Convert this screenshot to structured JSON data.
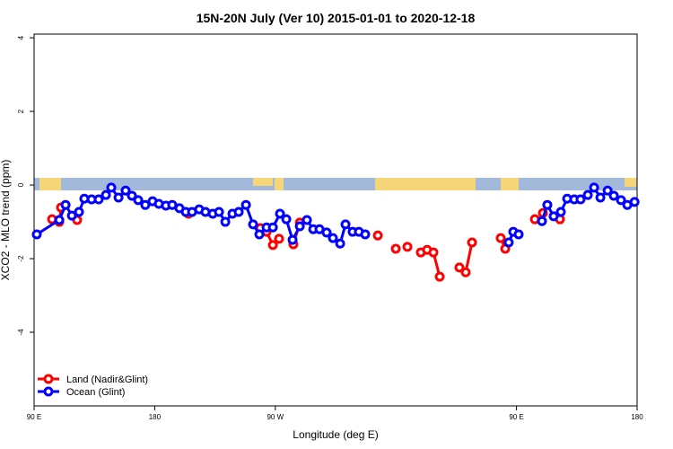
{
  "chart_data": {
    "type": "line",
    "title": "15N-20N July (Ver 10)   2015-01-01 to 2020-12-18",
    "x_label": "Longitude (deg E)",
    "y_label": "XCO2 - MLO trend (ppm)",
    "xlim": [
      90,
      540
    ],
    "ylim": [
      -6.0,
      4.1
    ],
    "xticks": [
      {
        "value": 90,
        "label": "90 E"
      },
      180,
      {
        "value": 270,
        "label": "90 W"
      },
      {
        "value": 450,
        "label": "90 E"
      },
      {
        "value": 540,
        "label": "180"
      }
    ],
    "yticks": [
      -4,
      -2,
      0,
      2,
      4
    ],
    "legend": "bottom-left",
    "series": [
      {
        "name": "Land (Nadir&Glint)",
        "color": "#ff0000",
        "x": [
          103.4,
          null,
          108.8,
          110.1,
          null,
          122.1,
          null,
          205.2,
          null,
          258.8,
          263.5,
          268.2,
          272.8,
          null,
          283.5,
          288.3,
          null,
          346.5,
          null,
          359.9,
          null,
          368.6,
          null,
          378.6,
          383.3,
          388.0,
          392.7,
          null,
          407.4,
          412.1,
          416.8,
          null,
          438.2,
          441.6,
          null,
          463.7,
          null,
          469.7,
          null,
          482.4
        ],
        "values": [
          -0.93,
          null,
          -1.0,
          -0.61,
          null,
          -0.95,
          null,
          -0.78,
          null,
          -1.17,
          -1.27,
          -1.63,
          -1.46,
          null,
          -1.61,
          -1.02,
          null,
          -1.37,
          null,
          -1.73,
          null,
          -1.68,
          null,
          -1.83,
          -1.76,
          -1.83,
          -2.49,
          null,
          -2.24,
          -2.37,
          -1.56,
          null,
          -1.44,
          -1.73,
          null,
          -0.93,
          null,
          -0.76,
          null,
          -0.93
        ]
      },
      {
        "name": "Ocean (Glint)",
        "color": "#0000ff",
        "x": [
          92.0,
          108.8,
          113.5,
          118.2,
          123.5,
          127.5,
          132.9,
          138.2,
          143.6,
          147.6,
          153.0,
          158.3,
          163.0,
          167.7,
          173.0,
          178.4,
          183.1,
          188.4,
          193.1,
          198.5,
          203.2,
          207.9,
          213.2,
          217.9,
          223.3,
          228.0,
          232.7,
          238.0,
          242.7,
          248.1,
          253.4,
          258.1,
          263.5,
          268.2,
          273.5,
          278.2,
          282.9,
          288.3,
          293.6,
          298.3,
          303.0,
          308.3,
          313.0,
          318.4,
          322.4,
          327.7,
          332.4,
          337.1,
          null,
          444.2,
          447.6,
          451.6,
          null,
          469.0,
          473.0,
          477.7,
          483.1,
          487.8,
          493.1,
          497.8,
          503.2,
          507.9,
          512.6,
          518.0,
          522.6,
          528.0,
          532.7,
          538.1
        ],
        "values": [
          -1.34,
          -0.95,
          -0.54,
          -0.83,
          -0.73,
          -0.37,
          -0.39,
          -0.39,
          -0.27,
          -0.07,
          -0.34,
          -0.15,
          -0.29,
          -0.41,
          -0.54,
          -0.44,
          -0.51,
          -0.56,
          -0.54,
          -0.63,
          -0.73,
          -0.73,
          -0.66,
          -0.73,
          -0.78,
          -0.73,
          -1.0,
          -0.78,
          -0.73,
          -0.54,
          -1.07,
          -1.34,
          -1.15,
          -1.15,
          -0.78,
          -0.93,
          -1.49,
          -1.12,
          -0.95,
          -1.2,
          -1.2,
          -1.29,
          -1.44,
          -1.59,
          -1.07,
          -1.27,
          -1.27,
          -1.34,
          null,
          -1.56,
          -1.27,
          -1.34,
          null,
          -0.98,
          -0.54,
          -0.85,
          -0.73,
          -0.37,
          -0.39,
          -0.39,
          -0.27,
          -0.07,
          -0.34,
          -0.15,
          -0.29,
          -0.41,
          -0.54,
          -0.46
        ]
      }
    ]
  }
}
